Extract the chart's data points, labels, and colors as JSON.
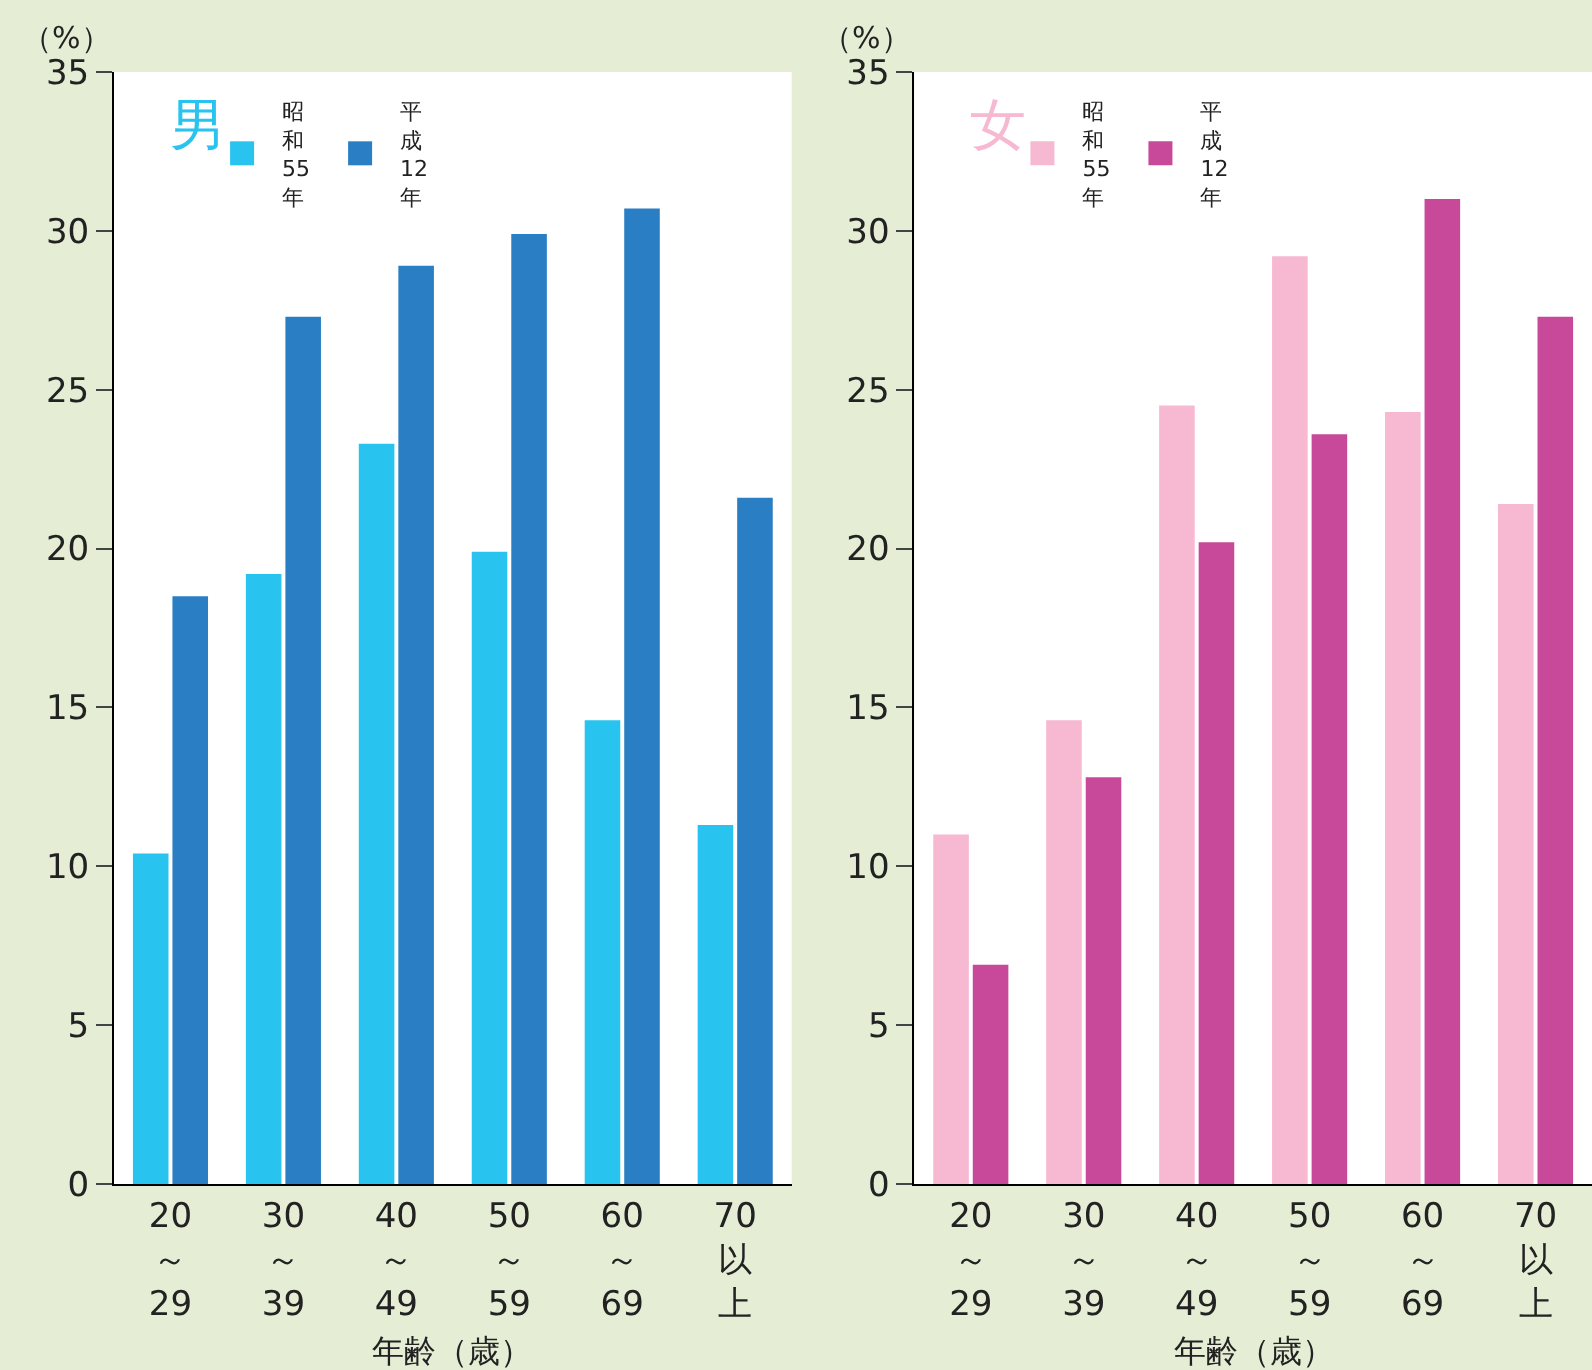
{
  "chart_data": [
    {
      "type": "bar",
      "title": "男",
      "ylabel": "（%）",
      "xlabel": "年齢（歳）",
      "categories": [
        "20～29",
        "30～39",
        "40～49",
        "50～59",
        "60～69",
        "70以上"
      ],
      "series": [
        {
          "name": "昭和55年",
          "color": "#29c3ef",
          "values": [
            10.4,
            19.2,
            23.3,
            19.9,
            14.6,
            11.3
          ]
        },
        {
          "name": "平成12年",
          "color": "#2a7fc4",
          "values": [
            18.5,
            27.3,
            28.9,
            29.9,
            30.7,
            21.6
          ]
        }
      ],
      "ylim": [
        0,
        35
      ],
      "yticks": [
        0,
        5,
        10,
        15,
        20,
        25,
        30,
        35
      ],
      "legend": "top left",
      "grid": false
    },
    {
      "type": "bar",
      "title": "女",
      "ylabel": "（%）",
      "xlabel": "年齢（歳）",
      "categories": [
        "20～29",
        "30～39",
        "40～49",
        "50～59",
        "60～69",
        "70以上"
      ],
      "series": [
        {
          "name": "昭和55年",
          "color": "#f7b8d2",
          "values": [
            11.0,
            14.6,
            24.5,
            29.2,
            24.3,
            21.4
          ]
        },
        {
          "name": "平成12年",
          "color": "#c8489a",
          "values": [
            6.9,
            12.8,
            20.2,
            23.6,
            31.0,
            27.3
          ]
        }
      ],
      "ylim": [
        0,
        35
      ],
      "yticks": [
        0,
        5,
        10,
        15,
        20,
        25,
        30,
        35
      ],
      "legend": "top left",
      "grid": false
    }
  ]
}
